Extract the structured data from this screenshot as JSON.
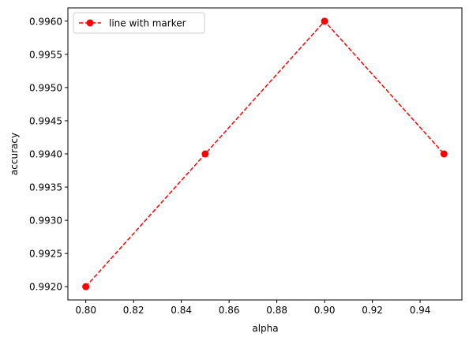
{
  "chart_data": {
    "type": "line",
    "title": "",
    "xlabel": "alpha",
    "ylabel": "accuracy",
    "xlim": [
      0.7925,
      0.9575
    ],
    "ylim": [
      0.9918,
      0.9962
    ],
    "x_ticks": [
      0.8,
      0.82,
      0.84,
      0.86,
      0.88,
      0.9,
      0.92,
      0.94
    ],
    "y_ticks": [
      0.992,
      0.9925,
      0.993,
      0.9935,
      0.994,
      0.9945,
      0.995,
      0.9955,
      0.996
    ],
    "x_tick_labels": [
      "0.80",
      "0.82",
      "0.84",
      "0.86",
      "0.88",
      "0.90",
      "0.92",
      "0.94"
    ],
    "y_tick_labels": [
      "0.9920",
      "0.9925",
      "0.9930",
      "0.9935",
      "0.9940",
      "0.9945",
      "0.9950",
      "0.9955",
      "0.9960"
    ],
    "grid": false,
    "legend_position": "top-left",
    "series": [
      {
        "name": "line with marker",
        "x": [
          0.8,
          0.85,
          0.9,
          0.95
        ],
        "y": [
          0.992,
          0.994,
          0.996,
          0.994
        ],
        "color": "#ff0000",
        "line_style": "dashed",
        "marker": "circle"
      }
    ]
  }
}
